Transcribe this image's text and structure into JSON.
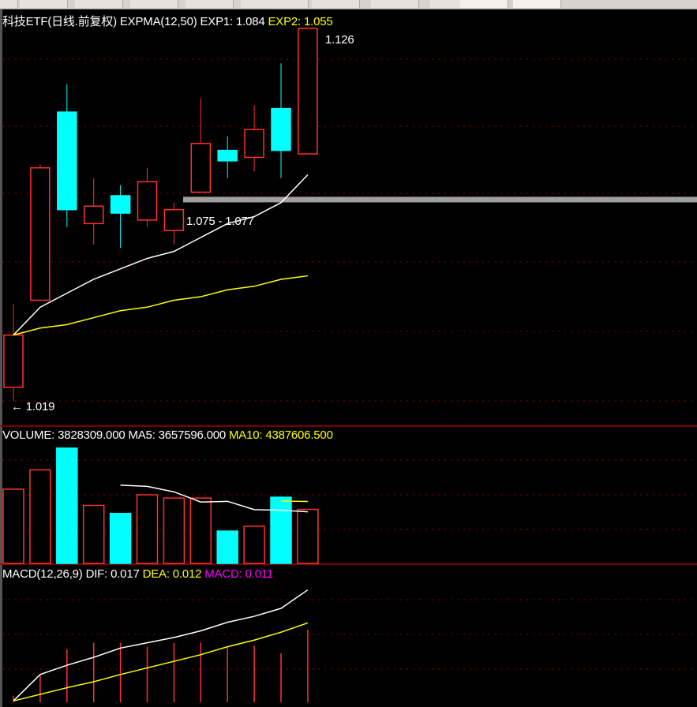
{
  "top_menu": {
    "tabs": 11,
    "highlighted_tabs": [
      9,
      10
    ]
  },
  "price_panel": {
    "symbol_label": "科技ETF(日线.前复权)",
    "indicator": "EXPMA(12,50)",
    "exp1": "EXP1: 1.084",
    "exp2": "EXP2: 1.055",
    "high_marker": "1.126",
    "low_marker": "1.019",
    "range_label": "1.075 - 1.077"
  },
  "volume_panel": {
    "volume": "VOLUME: 3828309.000",
    "ma5": "MA5: 3657596.000",
    "ma10": "MA10: 4387606.500"
  },
  "macd_panel": {
    "name": "MACD(12,26,9)",
    "dif": "DIF: 0.017",
    "dea": "DEA: 0.012",
    "macd": "MACD: 0.011"
  },
  "colors": {
    "up": "#ff3030",
    "down": "#00ffff",
    "exp1": "#ffffff",
    "exp2": "#ffff00",
    "macd_label": "#ff00ff",
    "grid": "#8b0000",
    "range_bar": "#a0a0a0"
  },
  "chart_data": {
    "type": "candlestick",
    "candles": [
      {
        "o": 1.023,
        "h": 1.047,
        "l": 1.019,
        "c": 1.038
      },
      {
        "o": 1.048,
        "h": 1.087,
        "l": 1.048,
        "c": 1.086
      },
      {
        "o": 1.102,
        "h": 1.11,
        "l": 1.069,
        "c": 1.074
      },
      {
        "o": 1.07,
        "h": 1.083,
        "l": 1.064,
        "c": 1.075
      },
      {
        "o": 1.078,
        "h": 1.081,
        "l": 1.063,
        "c": 1.073
      },
      {
        "o": 1.071,
        "h": 1.086,
        "l": 1.069,
        "c": 1.082
      },
      {
        "o": 1.068,
        "h": 1.076,
        "l": 1.064,
        "c": 1.074
      },
      {
        "o": 1.079,
        "h": 1.106,
        "l": 1.079,
        "c": 1.093
      },
      {
        "o": 1.091,
        "h": 1.095,
        "l": 1.083,
        "c": 1.088
      },
      {
        "o": 1.089,
        "h": 1.104,
        "l": 1.085,
        "c": 1.097
      },
      {
        "o": 1.103,
        "h": 1.116,
        "l": 1.083,
        "c": 1.091
      },
      {
        "o": 1.09,
        "h": 1.126,
        "l": 1.09,
        "c": 1.126
      }
    ],
    "exp1": [
      1.038,
      1.046,
      1.05,
      1.054,
      1.057,
      1.06,
      1.062,
      1.066,
      1.07,
      1.072,
      1.076,
      1.084
    ],
    "exp2": [
      1.038,
      1.04,
      1.041,
      1.043,
      1.045,
      1.046,
      1.048,
      1.049,
      1.051,
      1.052,
      1.054,
      1.055
    ],
    "range_band": [
      1.075,
      1.077
    ],
    "price_range": [
      1.013,
      1.131
    ],
    "volume": [
      5260000,
      6630000,
      8170000,
      4110000,
      3540000,
      4860000,
      4630000,
      4630000,
      2290000,
      2630000,
      4690000,
      3828309
    ],
    "volume_ma5": [
      null,
      null,
      null,
      null,
      5540000,
      5460000,
      5070000,
      4350000,
      4400000,
      3810000,
      3770000,
      3657596
    ],
    "volume_ma10": [
      null,
      null,
      null,
      null,
      null,
      null,
      null,
      null,
      null,
      null,
      4420000,
      4387606.5
    ],
    "volume_max": 8500000,
    "dif": [
      0.0002,
      0.0042,
      0.0056,
      0.0068,
      0.0082,
      0.009,
      0.0098,
      0.0108,
      0.0121,
      0.013,
      0.0142,
      0.017
    ],
    "dea": [
      0.0002,
      0.0012,
      0.0022,
      0.0031,
      0.0042,
      0.0052,
      0.0062,
      0.0072,
      0.0084,
      0.0094,
      0.0106,
      0.012
    ],
    "macd": [
      0.001,
      0.0042,
      0.008,
      0.009,
      0.009,
      0.0084,
      0.009,
      0.009,
      0.0084,
      0.0086,
      0.0074,
      0.011
    ],
    "macd_range": [
      0,
      0.0185
    ],
    "grid": true
  }
}
